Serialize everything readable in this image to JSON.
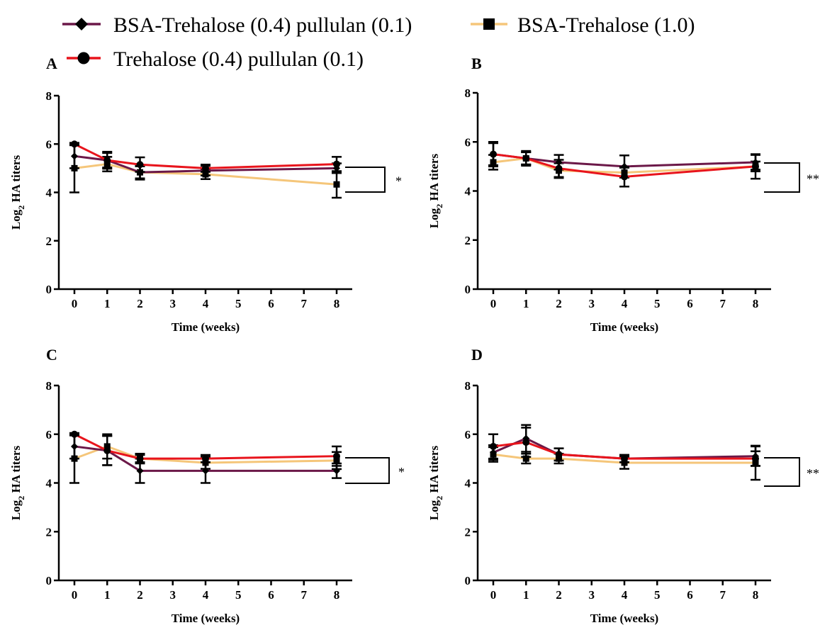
{
  "legend": [
    {
      "label": "BSA-Trehalose (0.4) pullulan (0.1)",
      "color": "#6b1848",
      "marker": "diamond"
    },
    {
      "label": "BSA-Trehalose (1.0)",
      "color": "#f5c67a",
      "marker": "square"
    },
    {
      "label": "Trehalose (0.4) pullulan (0.1)",
      "color": "#e8141c",
      "marker": "circle"
    }
  ],
  "chart_data": [
    {
      "type": "line",
      "panel": "A",
      "xlabel": "Time (weeks)",
      "ylabel": "Log2 HA titers",
      "xlim": [
        -0.5,
        8.5
      ],
      "ylim": [
        0,
        8
      ],
      "xticks": [
        "0",
        "1",
        "2",
        "3",
        "4",
        "5",
        "6",
        "7",
        "8"
      ],
      "yticks": [
        "0",
        "2",
        "4",
        "6",
        "8"
      ],
      "x": [
        0,
        1,
        2,
        4,
        8
      ],
      "series": [
        {
          "name": "BSA-Trehalose (0.4) pullulan (0.1)",
          "values": [
            5.5,
            5.33,
            4.83,
            4.9,
            5.0
          ],
          "errors": [
            0.5,
            0.35,
            0.3,
            0.2,
            0.2
          ]
        },
        {
          "name": "BSA-Trehalose (1.0)",
          "values": [
            5.0,
            5.17,
            4.83,
            4.75,
            4.33
          ],
          "errors": [
            1.0,
            0.3,
            0.25,
            0.2,
            0.55
          ]
        },
        {
          "name": "Trehalose (0.4) pullulan (0.1)",
          "values": [
            6.0,
            5.33,
            5.15,
            5.0,
            5.17
          ],
          "errors": [
            0.05,
            0.3,
            0.3,
            0.15,
            0.3
          ]
        }
      ],
      "significance": "*"
    },
    {
      "type": "line",
      "panel": "B",
      "xlabel": "Time (weeks)",
      "ylabel": "Log2 HA titers",
      "xlim": [
        -0.5,
        8.5
      ],
      "ylim": [
        0,
        8
      ],
      "xticks": [
        "0",
        "1",
        "2",
        "3",
        "4",
        "5",
        "6",
        "7",
        "8"
      ],
      "yticks": [
        "0",
        "2",
        "4",
        "6",
        "8"
      ],
      "x": [
        0,
        1,
        2,
        4,
        8
      ],
      "series": [
        {
          "name": "BSA-Trehalose (0.4) pullulan (0.1)",
          "values": [
            5.5,
            5.33,
            5.17,
            5.0,
            5.17
          ],
          "errors": [
            0.5,
            0.3,
            0.3,
            0.45,
            0.3
          ]
        },
        {
          "name": "BSA-Trehalose (1.0)",
          "values": [
            5.17,
            5.33,
            4.83,
            4.75,
            5.0
          ],
          "errors": [
            0.3,
            0.25,
            0.3,
            0.2,
            0.2
          ]
        },
        {
          "name": "Trehalose (0.4) pullulan (0.1)",
          "values": [
            5.5,
            5.33,
            4.92,
            4.58,
            5.0
          ],
          "errors": [
            0.45,
            0.25,
            0.35,
            0.4,
            0.5
          ]
        }
      ],
      "significance": "**"
    },
    {
      "type": "line",
      "panel": "C",
      "xlabel": "Time (weeks)",
      "ylabel": "Log2 HA titers",
      "xlim": [
        -0.5,
        8.5
      ],
      "ylim": [
        0,
        8
      ],
      "xticks": [
        "0",
        "1",
        "2",
        "3",
        "4",
        "5",
        "6",
        "7",
        "8"
      ],
      "yticks": [
        "0",
        "2",
        "4",
        "6",
        "8"
      ],
      "x": [
        0,
        1,
        2,
        4,
        8
      ],
      "series": [
        {
          "name": "BSA-Trehalose (0.4) pullulan (0.1)",
          "values": [
            5.5,
            5.33,
            4.5,
            4.5,
            4.5
          ],
          "errors": [
            0.5,
            0.6,
            0.5,
            0.5,
            0.3
          ]
        },
        {
          "name": "BSA-Trehalose (1.0)",
          "values": [
            5.0,
            5.5,
            5.0,
            4.83,
            4.92
          ],
          "errors": [
            1.0,
            0.5,
            0.2,
            0.25,
            0.35
          ]
        },
        {
          "name": "Trehalose (0.4) pullulan (0.1)",
          "values": [
            6.0,
            5.33,
            5.0,
            5.0,
            5.1
          ],
          "errors": [
            0.05,
            0.6,
            0.15,
            0.15,
            0.4
          ]
        }
      ],
      "significance": "*"
    },
    {
      "type": "line",
      "panel": "D",
      "xlabel": "Time (weeks)",
      "ylabel": "Log2 HA titers",
      "xlim": [
        -0.5,
        8.5
      ],
      "ylim": [
        0,
        8
      ],
      "xticks": [
        "0",
        "1",
        "2",
        "3",
        "4",
        "5",
        "6",
        "7",
        "8"
      ],
      "yticks": [
        "0",
        "2",
        "4",
        "6",
        "8"
      ],
      "x": [
        0,
        1,
        2,
        4,
        8
      ],
      "series": [
        {
          "name": "BSA-Trehalose (0.4) pullulan (0.1)",
          "values": [
            5.25,
            5.83,
            5.17,
            5.0,
            5.1
          ],
          "errors": [
            0.3,
            0.55,
            0.25,
            0.15,
            0.4
          ]
        },
        {
          "name": "BSA-Trehalose (1.0)",
          "values": [
            5.17,
            5.0,
            5.0,
            4.83,
            4.83
          ],
          "errors": [
            0.3,
            0.2,
            0.2,
            0.25,
            0.7
          ]
        },
        {
          "name": "Trehalose (0.4) pullulan (0.1)",
          "values": [
            5.5,
            5.67,
            5.17,
            5.0,
            5.0
          ],
          "errors": [
            0.5,
            0.6,
            0.25,
            0.15,
            0.3
          ]
        }
      ],
      "significance": "**"
    }
  ]
}
